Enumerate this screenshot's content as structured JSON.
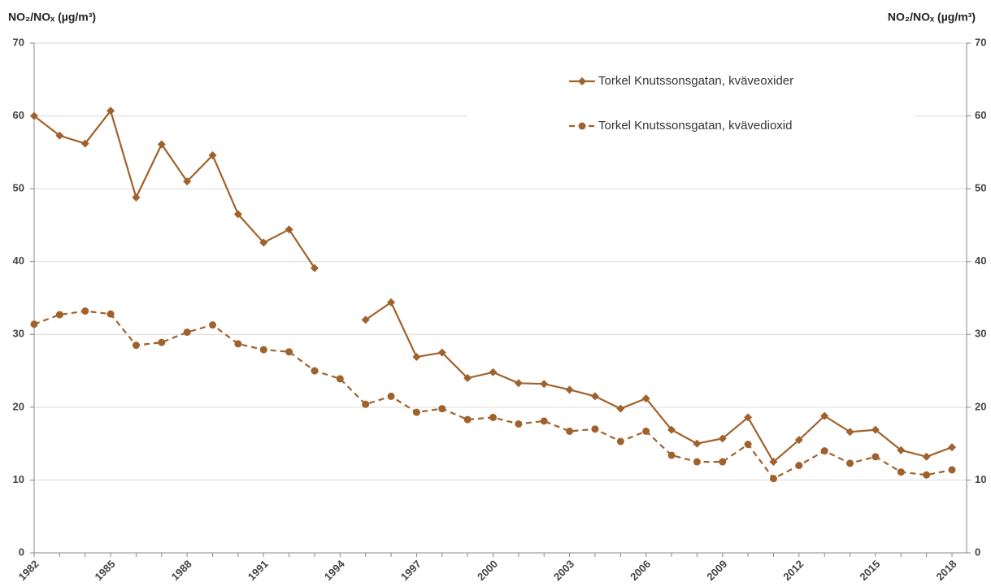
{
  "chart_data": {
    "type": "line",
    "y_label": "NO₂/NOₓ (µg/m³)",
    "y2_label": "NO₂/NOₓ (µg/m³)",
    "x": [
      1982,
      1983,
      1984,
      1985,
      1986,
      1987,
      1988,
      1989,
      1990,
      1991,
      1992,
      1993,
      1994,
      1995,
      1996,
      1997,
      1998,
      1999,
      2000,
      2001,
      2002,
      2003,
      2004,
      2005,
      2006,
      2007,
      2008,
      2009,
      2010,
      2011,
      2012,
      2013,
      2014,
      2015,
      2016,
      2017,
      2018
    ],
    "xlim": [
      1982,
      2018
    ],
    "xticks": [
      1982,
      1985,
      1988,
      1991,
      1994,
      1997,
      2000,
      2003,
      2006,
      2009,
      2012,
      2015,
      2018
    ],
    "ylim": [
      0,
      70
    ],
    "yticks": [
      0,
      10,
      20,
      30,
      40,
      50,
      60,
      70
    ],
    "y2lim": [
      0,
      70
    ],
    "y2ticks": [
      0,
      10,
      20,
      30,
      40,
      50,
      60,
      70
    ],
    "grid": true,
    "legend": "upper right",
    "series": [
      {
        "name": "Torkel Knutssonsgatan, kväveoxider",
        "color": "#a0622d",
        "marker": "diamond",
        "linestyle": "solid",
        "values": [
          60.0,
          57.3,
          56.2,
          60.7,
          48.8,
          56.1,
          51.0,
          54.6,
          46.5,
          42.6,
          44.4,
          39.1,
          null,
          32.0,
          34.4,
          26.9,
          27.5,
          24.0,
          24.8,
          23.3,
          23.2,
          22.4,
          21.5,
          19.8,
          21.2,
          16.9,
          15.0,
          15.7,
          18.6,
          12.5,
          15.5,
          18.8,
          16.6,
          16.9,
          14.1,
          13.2,
          14.5
        ]
      },
      {
        "name": "Torkel Knutssonsgatan, kvävedioxid",
        "color": "#a0622d",
        "marker": "circle",
        "linestyle": "dashed",
        "values": [
          31.4,
          32.7,
          33.2,
          32.8,
          28.5,
          28.9,
          30.3,
          31.3,
          28.7,
          27.9,
          27.6,
          25.0,
          23.9,
          20.4,
          21.5,
          19.3,
          19.8,
          18.3,
          18.6,
          17.7,
          18.1,
          16.7,
          17.0,
          15.3,
          16.7,
          13.4,
          12.5,
          12.5,
          14.9,
          10.2,
          12.0,
          14.0,
          12.3,
          13.2,
          11.1,
          10.7,
          11.4
        ]
      }
    ]
  }
}
